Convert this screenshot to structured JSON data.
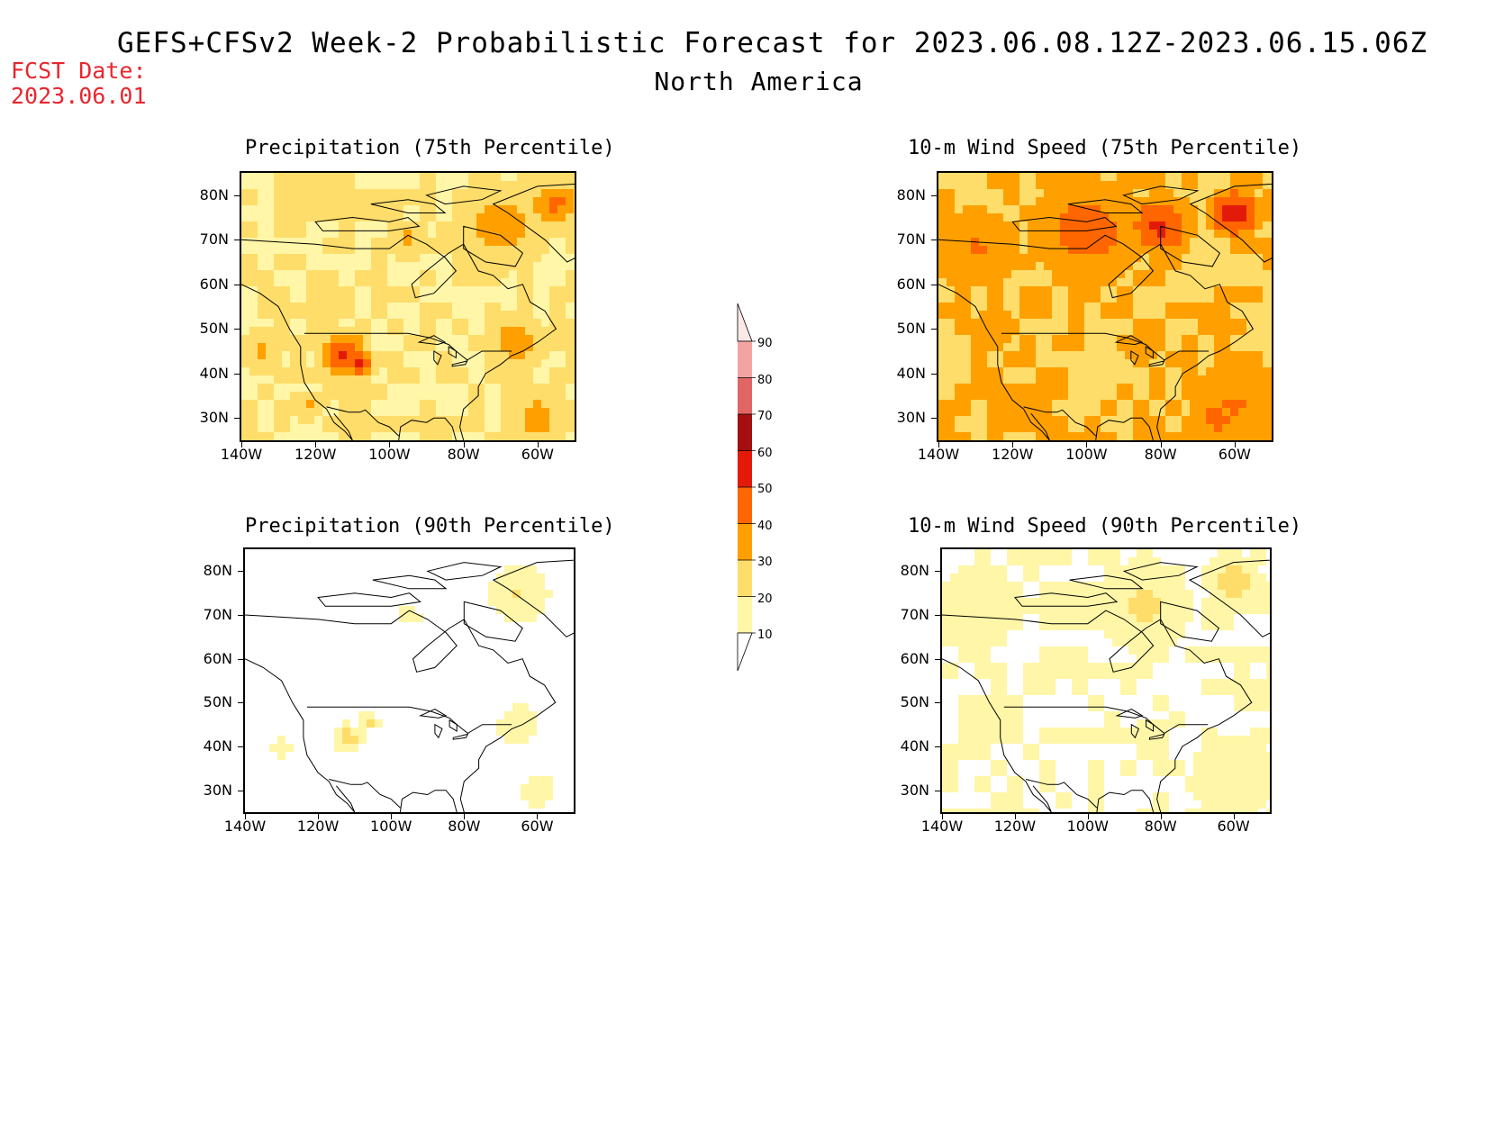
{
  "header": {
    "title": "GEFS+CFSv2 Week-2 Probabilistic Forecast for 2023.06.08.12Z-2023.06.15.06Z",
    "subtitle": "North America",
    "fcst_line1": "FCST Date:",
    "fcst_line2": "2023.06.01",
    "fcst_color": "#e8262e"
  },
  "axes": {
    "lat_labels": [
      "80N",
      "70N",
      "60N",
      "50N",
      "40N",
      "30N"
    ],
    "lon_labels": [
      "140W",
      "120W",
      "100W",
      "80W",
      "60W"
    ]
  },
  "panels": [
    {
      "title": "Precipitation (75th Percentile)",
      "base_level": 20
    },
    {
      "title": "10-m Wind Speed (75th Percentile)",
      "base_level": 30
    },
    {
      "title": "Precipitation (90th Percentile)",
      "base_level": 0
    },
    {
      "title": "10-m Wind Speed (90th Percentile)",
      "base_level": 10
    }
  ],
  "colorbar": {
    "labels": [
      "90",
      "80",
      "70",
      "60",
      "50",
      "40",
      "30",
      "20",
      "10"
    ],
    "colors": [
      "#fde8e8",
      "#f4a3a3",
      "#e06666",
      "#a50f0f",
      "#e31a0a",
      "#ff6600",
      "#ffa000",
      "#ffdd6a",
      "#fff6a8"
    ]
  }
}
